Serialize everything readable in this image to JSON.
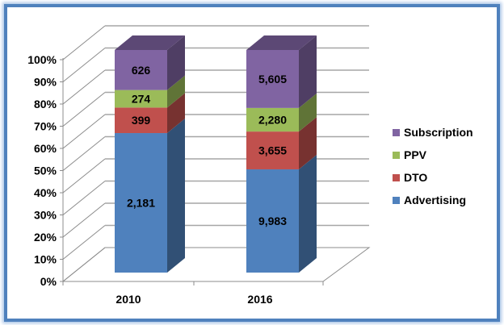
{
  "chart_data": {
    "type": "bar",
    "subtype": "stacked-100-percent-3d",
    "title": "",
    "xlabel": "",
    "ylabel": "",
    "categories": [
      "2010",
      "2016"
    ],
    "series": [
      {
        "name": "Advertising",
        "color": "#4f81bd",
        "values": [
          2181,
          9983
        ]
      },
      {
        "name": "DTO",
        "color": "#c0504d",
        "values": [
          399,
          3655
        ]
      },
      {
        "name": "PPV",
        "color": "#9bbb59",
        "values": [
          274,
          2280
        ]
      },
      {
        "name": "Subscription",
        "color": "#8064a2",
        "values": [
          626,
          5605
        ]
      }
    ],
    "data_labels": {
      "2010": {
        "Advertising": "2,181",
        "DTO": "399",
        "PPV": "274",
        "Subscription": "626"
      },
      "2016": {
        "Advertising": "9,983",
        "DTO": "3,655",
        "PPV": "2,280",
        "Subscription": "5,605"
      }
    },
    "yticks": [
      "0%",
      "10%",
      "20%",
      "30%",
      "40%",
      "50%",
      "60%",
      "70%",
      "80%",
      "90%",
      "100%"
    ],
    "ylim": [
      0,
      100
    ],
    "grid": true,
    "legend_position": "right",
    "legend_order": [
      "Subscription",
      "PPV",
      "DTO",
      "Advertising"
    ]
  },
  "legend": [
    {
      "label": "Subscription",
      "color": "#8064a2"
    },
    {
      "label": "PPV",
      "color": "#9bbb59"
    },
    {
      "label": "DTO",
      "color": "#c0504d"
    },
    {
      "label": "Advertising",
      "color": "#4f81bd"
    }
  ]
}
